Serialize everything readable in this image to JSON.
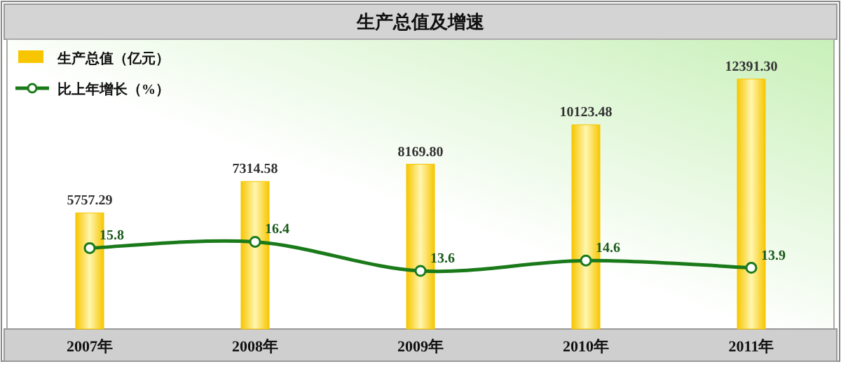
{
  "chart_data": {
    "type": "bar",
    "title": "生产总值及增速",
    "categories": [
      "2007年",
      "2008年",
      "2009年",
      "2010年",
      "2011年"
    ],
    "series": [
      {
        "name": "生产总值（亿元）",
        "color": "#f7c600",
        "values": [
          5757.29,
          7314.58,
          8169.8,
          10123.48,
          12391.3
        ],
        "value_labels": [
          "5757.29",
          "7314.58",
          "8169.80",
          "10123.48",
          "12391.30"
        ]
      },
      {
        "name": "比上年增长（%）",
        "type": "line",
        "axis": "y2",
        "color": "#1a7a1a",
        "values": [
          15.8,
          16.4,
          13.6,
          14.6,
          13.9
        ]
      }
    ],
    "data_labels": true,
    "legend": "top left",
    "marker": "circle",
    "line_style": "solid",
    "tick_labels": "x"
  }
}
